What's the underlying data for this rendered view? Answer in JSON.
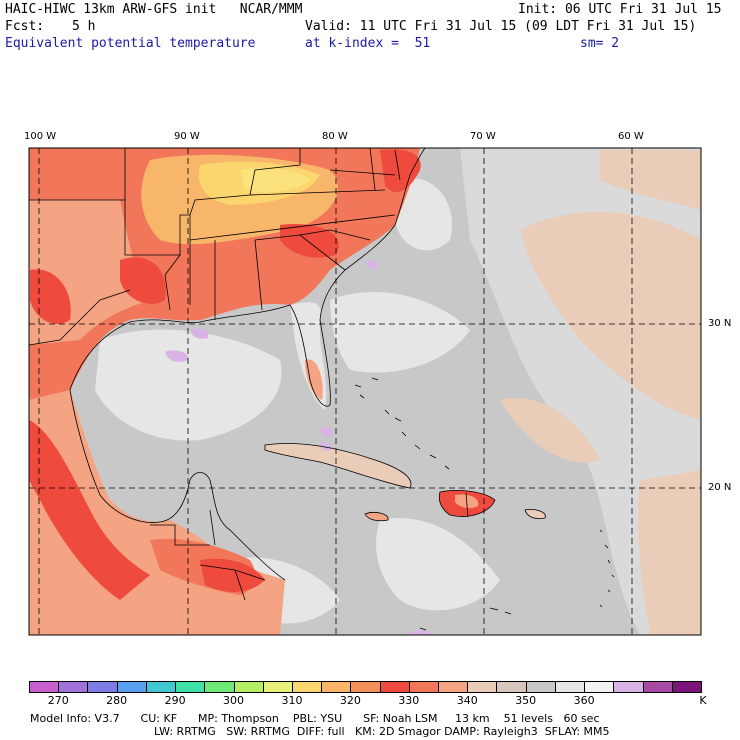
{
  "header": {
    "model_title": "HAIC-HIWC 13km ARW-GFS init   NCAR/MMM",
    "init": "Init: 06 UTC Fri 31 Jul 15",
    "fcst_label": "Fcst:",
    "fcst_value": "5 h",
    "valid": "Valid: 11 UTC Fri 31 Jul 15 (09 LDT Fri 31 Jul 15)",
    "field_name": "Equivalent potential temperature",
    "level": "at k-index =  51",
    "smoothing": "sm= 2"
  },
  "map": {
    "lon_labels": [
      "100 W",
      "90 W",
      "80 W",
      "70 W",
      "60 W"
    ],
    "lat_labels": [
      "30 N",
      "20 N"
    ],
    "colors": {
      "ocean_gray": "#c8c8c8",
      "light_gray": "#e6e6e6",
      "tan": "#e9cdb8",
      "salmon": "#f4a482",
      "orange_red": "#f2765a",
      "red": "#ee4a3e",
      "orange": "#f8b66a",
      "yellow": "#fbe27c",
      "lavender": "#d9b3e6"
    }
  },
  "colorbar": {
    "colors": [
      "#c85fcf",
      "#a173d9",
      "#7e7de6",
      "#5a9ff0",
      "#40c7d0",
      "#3fe0a6",
      "#6fe87a",
      "#b4ee62",
      "#e8f07a",
      "#fbd56e",
      "#f8b66a",
      "#f59058",
      "#ee4a3e",
      "#f2765a",
      "#f4a482",
      "#e9cdb8",
      "#d8c6bc",
      "#c8c8c8",
      "#e6e6e6",
      "#f2f2f2",
      "#d9b3e6",
      "#a84aa4",
      "#7a1478"
    ],
    "tick_labels": [
      "270",
      "280",
      "290",
      "300",
      "310",
      "320",
      "330",
      "340",
      "350",
      "360"
    ],
    "unit": "K"
  },
  "footer": {
    "line1": "Model Info: V3.7      CU: KF      MP: Thompson    PBL: YSU      SF: Noah LSM     13 km    51 levels   60 sec",
    "line2": "LW: RRTMG   SW: RRTMG  DIFF: full   KM: 2D Smagor DAMP: Rayleigh3  SFLAY: MM5"
  }
}
